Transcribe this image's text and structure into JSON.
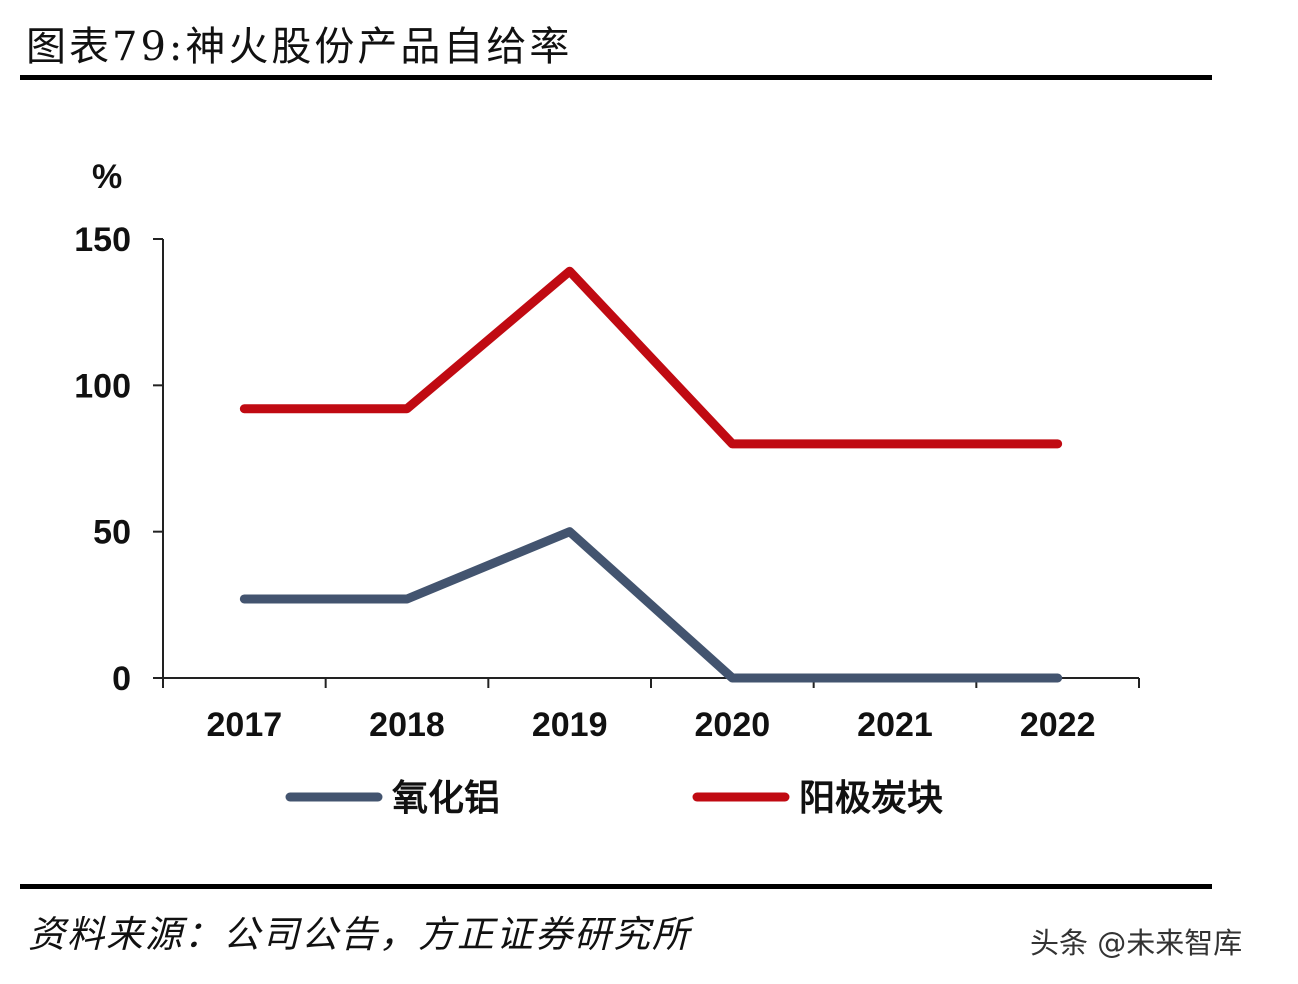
{
  "title": "图表79:神火股份产品自给率",
  "source": "资料来源：公司公告，方正证券研究所",
  "watermark": "头条 @未来智库",
  "chart_data": {
    "type": "line",
    "title": "图表79:神火股份产品自给率",
    "ylabel": "%",
    "xlabel": "",
    "categories": [
      "2017",
      "2018",
      "2019",
      "2020",
      "2021",
      "2022"
    ],
    "ylim": [
      0,
      150
    ],
    "yticks": [
      "0",
      "50",
      "100",
      "150"
    ],
    "grid": false,
    "legend_position": "bottom",
    "series": [
      {
        "name": "氧化铝",
        "color": "#43546f",
        "values": [
          27,
          27,
          50,
          0,
          0,
          0
        ]
      },
      {
        "name": "阳极炭块",
        "color": "#c00a12",
        "values": [
          92,
          92,
          139,
          80,
          80,
          80
        ]
      }
    ]
  }
}
